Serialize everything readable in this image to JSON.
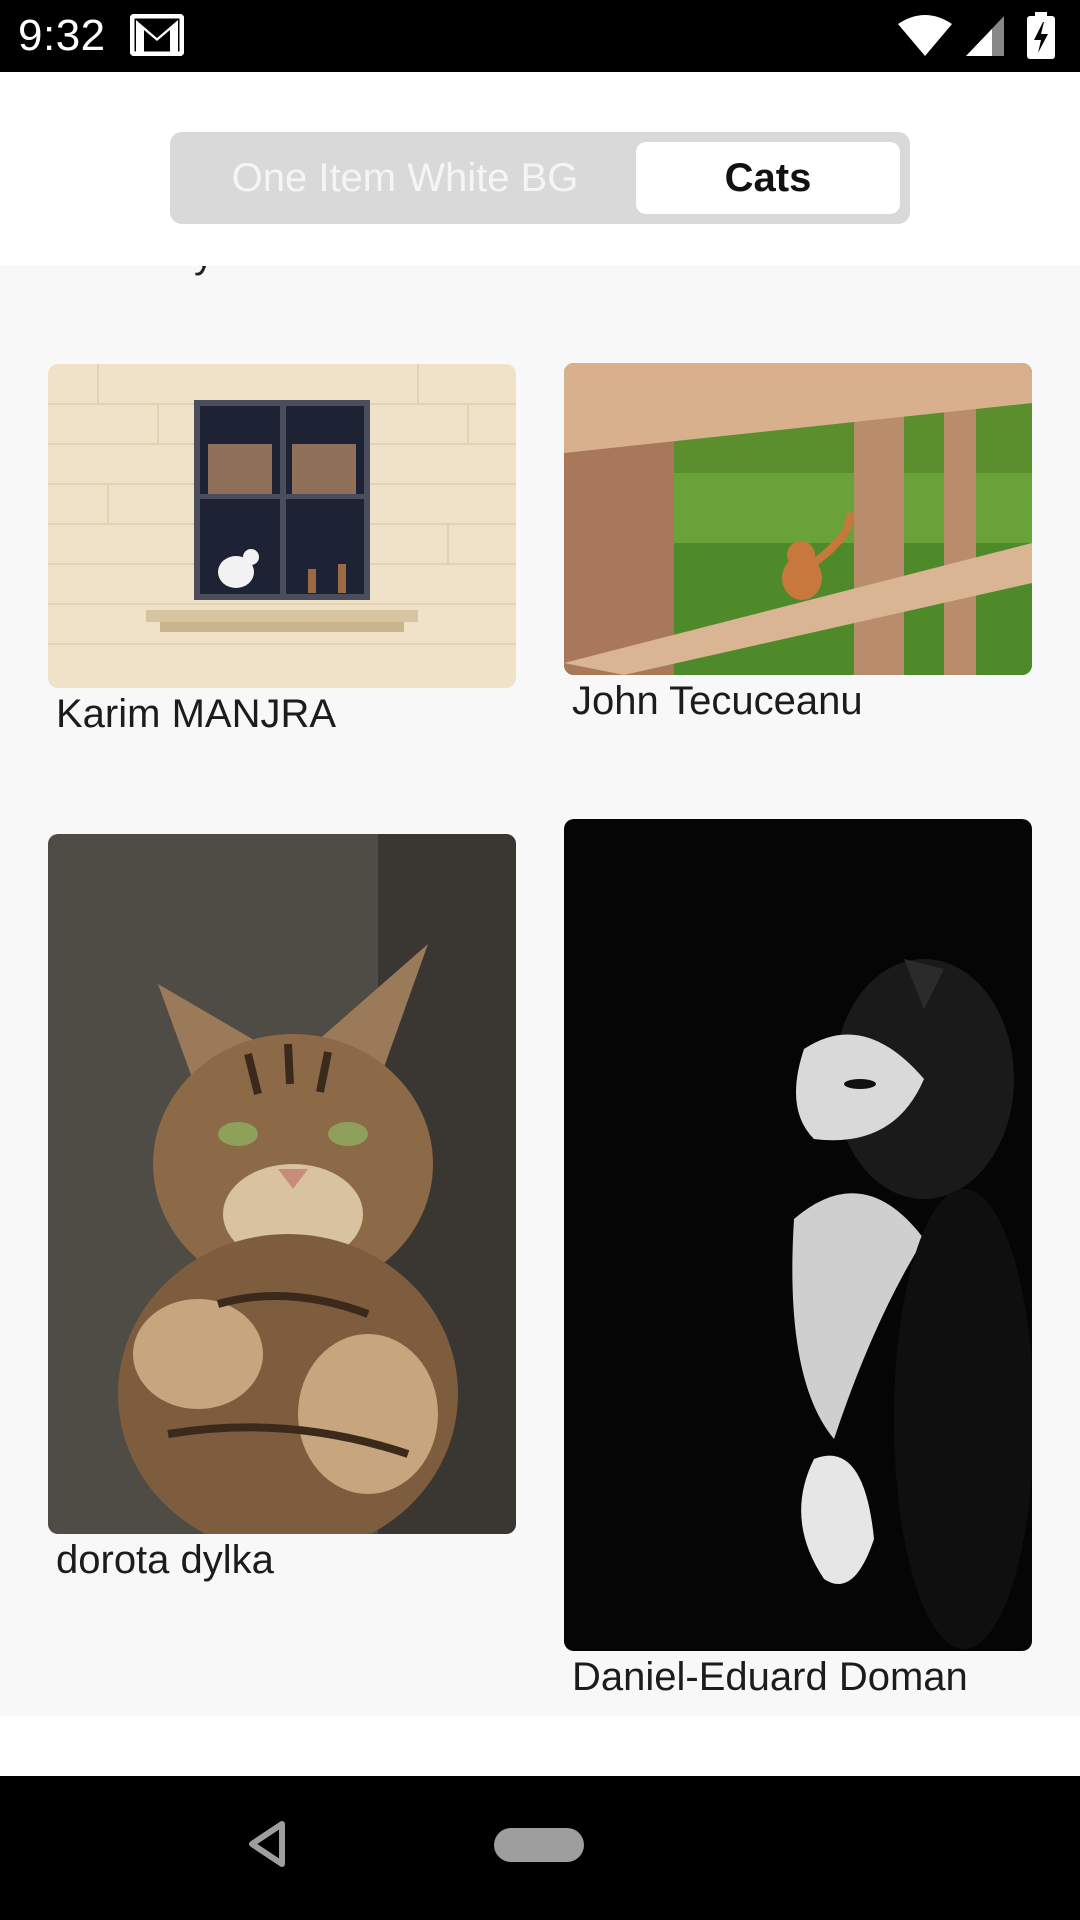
{
  "status_bar": {
    "time": "9:32",
    "icons": [
      "gmail-icon",
      "wifi-icon",
      "cell-signal-icon",
      "battery-charging-icon"
    ]
  },
  "segmented_control": {
    "tabs": [
      {
        "label": "One Item White BG",
        "selected": false
      },
      {
        "label": "Cats",
        "selected": true
      }
    ]
  },
  "gallery": {
    "cards": [
      {
        "caption": "Karim MANJRA",
        "image": "cat-in-window-photo"
      },
      {
        "caption": "John Tecuceanu",
        "image": "cat-behind-fence-photo"
      },
      {
        "caption": "dorota dylka",
        "image": "tabby-cat-photo"
      },
      {
        "caption": "Daniel-Eduard Doman",
        "image": "black-white-cat-photo"
      }
    ]
  },
  "colors": {
    "segmented_bg": "#d9d9d9",
    "content_bg": "#f8f8f8",
    "system_bars": "#000000"
  }
}
